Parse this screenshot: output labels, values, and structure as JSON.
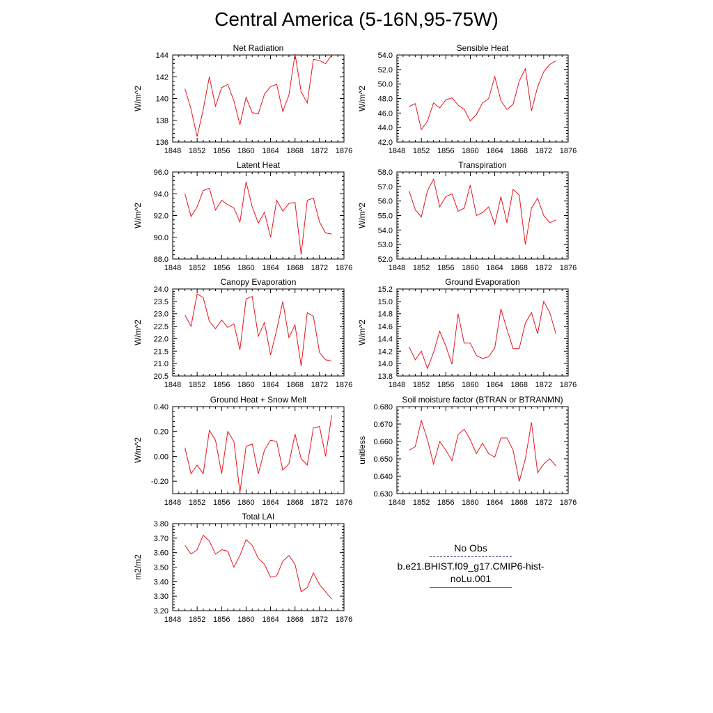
{
  "title": "Central America (5-16N,95-75W)",
  "colors": {
    "model": "#e8141c",
    "obs": "#5a5a9a",
    "axis": "#000000"
  },
  "legend": {
    "items": [
      {
        "label": "No Obs",
        "style": "dashed",
        "color": "#5a5a9a"
      },
      {
        "label": "b.e21.BHIST.f09_g17.CMIP6-hist-noLu.001",
        "style": "solid",
        "color": "#e8141c"
      }
    ]
  },
  "chart_data": [
    {
      "type": "line",
      "title": "Net Radiation",
      "ylabel": "W/m^2",
      "xlim": [
        1848,
        1876
      ],
      "ylim": [
        136,
        144
      ],
      "xticks": [
        1848,
        1852,
        1856,
        1860,
        1864,
        1868,
        1872,
        1876
      ],
      "yticks": [
        136,
        138,
        140,
        142,
        144
      ],
      "ydecimals": 0,
      "x": [
        1850,
        1851,
        1852,
        1853,
        1854,
        1855,
        1856,
        1857,
        1858,
        1859,
        1860,
        1861,
        1862,
        1863,
        1864,
        1865,
        1866,
        1867,
        1868,
        1869,
        1870,
        1871,
        1872,
        1873,
        1874
      ],
      "series": [
        {
          "name": "b.e21.BHIST.f09_g17.CMIP6-hist-noLu.001",
          "values": [
            140.9,
            139.0,
            136.5,
            139.0,
            142.0,
            139.3,
            141.0,
            141.3,
            139.8,
            137.6,
            140.1,
            138.7,
            138.6,
            140.4,
            141.1,
            141.3,
            138.8,
            140.3,
            144.1,
            140.6,
            139.6,
            143.6,
            143.5,
            143.2,
            144.0
          ]
        }
      ]
    },
    {
      "type": "line",
      "title": "Sensible Heat",
      "ylabel": "W/m^2",
      "xlim": [
        1848,
        1876
      ],
      "ylim": [
        42,
        54
      ],
      "xticks": [
        1848,
        1852,
        1856,
        1860,
        1864,
        1868,
        1872,
        1876
      ],
      "yticks": [
        42,
        44,
        46,
        48,
        50,
        52,
        54
      ],
      "ydecimals": 1,
      "x": [
        1850,
        1851,
        1852,
        1853,
        1854,
        1855,
        1856,
        1857,
        1858,
        1859,
        1860,
        1861,
        1862,
        1863,
        1864,
        1865,
        1866,
        1867,
        1868,
        1869,
        1870,
        1871,
        1872,
        1873,
        1874
      ],
      "series": [
        {
          "name": "b.e21.BHIST.f09_g17.CMIP6-hist-noLu.001",
          "values": [
            46.9,
            47.3,
            43.7,
            44.9,
            47.4,
            46.7,
            47.8,
            48.1,
            47.1,
            46.5,
            44.9,
            45.8,
            47.4,
            48.0,
            51.0,
            47.7,
            46.5,
            47.2,
            50.4,
            52.1,
            46.3,
            49.6,
            51.7,
            52.7,
            53.2
          ]
        }
      ]
    },
    {
      "type": "line",
      "title": "Latent Heat",
      "ylabel": "W/m^2",
      "xlim": [
        1848,
        1876
      ],
      "ylim": [
        88,
        96
      ],
      "xticks": [
        1848,
        1852,
        1856,
        1860,
        1864,
        1868,
        1872,
        1876
      ],
      "yticks": [
        88,
        90,
        92,
        94,
        96
      ],
      "ydecimals": 1,
      "x": [
        1850,
        1851,
        1852,
        1853,
        1854,
        1855,
        1856,
        1857,
        1858,
        1859,
        1860,
        1861,
        1862,
        1863,
        1864,
        1865,
        1866,
        1867,
        1868,
        1869,
        1870,
        1871,
        1872,
        1873,
        1874
      ],
      "series": [
        {
          "name": "b.e21.BHIST.f09_g17.CMIP6-hist-noLu.001",
          "values": [
            94.0,
            91.9,
            92.8,
            94.3,
            94.5,
            92.5,
            93.4,
            93.0,
            92.7,
            91.4,
            95.1,
            92.8,
            91.3,
            92.3,
            90.0,
            93.4,
            92.4,
            93.1,
            93.2,
            88.4,
            93.4,
            93.6,
            91.4,
            90.4,
            90.3
          ]
        }
      ]
    },
    {
      "type": "line",
      "title": "Transpiration",
      "ylabel": "W/m^2",
      "xlim": [
        1848,
        1876
      ],
      "ylim": [
        52,
        58
      ],
      "xticks": [
        1848,
        1852,
        1856,
        1860,
        1864,
        1868,
        1872,
        1876
      ],
      "yticks": [
        52,
        53,
        54,
        55,
        56,
        57,
        58
      ],
      "ydecimals": 1,
      "x": [
        1850,
        1851,
        1852,
        1853,
        1854,
        1855,
        1856,
        1857,
        1858,
        1859,
        1860,
        1861,
        1862,
        1863,
        1864,
        1865,
        1866,
        1867,
        1868,
        1869,
        1870,
        1871,
        1872,
        1873,
        1874
      ],
      "series": [
        {
          "name": "b.e21.BHIST.f09_g17.CMIP6-hist-noLu.001",
          "values": [
            56.7,
            55.4,
            54.9,
            56.7,
            57.5,
            55.6,
            56.3,
            56.5,
            55.3,
            55.5,
            57.1,
            55.0,
            55.2,
            55.6,
            54.4,
            56.3,
            54.5,
            56.8,
            56.4,
            53.0,
            55.5,
            56.2,
            55.0,
            54.5,
            54.7
          ]
        }
      ]
    },
    {
      "type": "line",
      "title": "Canopy Evaporation",
      "ylabel": "W/m^2",
      "xlim": [
        1848,
        1876
      ],
      "ylim": [
        20.5,
        24
      ],
      "xticks": [
        1848,
        1852,
        1856,
        1860,
        1864,
        1868,
        1872,
        1876
      ],
      "yticks": [
        20.5,
        21,
        21.5,
        22,
        22.5,
        23,
        23.5,
        24
      ],
      "ydecimals": 1,
      "x": [
        1850,
        1851,
        1852,
        1853,
        1854,
        1855,
        1856,
        1857,
        1858,
        1859,
        1860,
        1861,
        1862,
        1863,
        1864,
        1865,
        1866,
        1867,
        1868,
        1869,
        1870,
        1871,
        1872,
        1873,
        1874
      ],
      "series": [
        {
          "name": "b.e21.BHIST.f09_g17.CMIP6-hist-noLu.001",
          "values": [
            22.95,
            22.5,
            23.8,
            23.65,
            22.7,
            22.4,
            22.75,
            22.45,
            22.6,
            21.55,
            23.6,
            23.7,
            22.1,
            22.65,
            21.35,
            22.35,
            23.5,
            22.05,
            22.55,
            20.9,
            23.05,
            22.9,
            21.45,
            21.15,
            21.1
          ]
        }
      ]
    },
    {
      "type": "line",
      "title": "Ground Evaporation",
      "ylabel": "W/m^2",
      "xlim": [
        1848,
        1876
      ],
      "ylim": [
        13.8,
        15.2
      ],
      "xticks": [
        1848,
        1852,
        1856,
        1860,
        1864,
        1868,
        1872,
        1876
      ],
      "yticks": [
        13.8,
        14.0,
        14.2,
        14.4,
        14.6,
        14.8,
        15.0,
        15.2
      ],
      "ydecimals": 1,
      "x": [
        1850,
        1851,
        1852,
        1853,
        1854,
        1855,
        1856,
        1857,
        1858,
        1859,
        1860,
        1861,
        1862,
        1863,
        1864,
        1865,
        1866,
        1867,
        1868,
        1869,
        1870,
        1871,
        1872,
        1873,
        1874
      ],
      "series": [
        {
          "name": "b.e21.BHIST.f09_g17.CMIP6-hist-noLu.001",
          "values": [
            14.27,
            14.06,
            14.2,
            13.92,
            14.18,
            14.52,
            14.28,
            13.99,
            14.8,
            14.33,
            14.33,
            14.13,
            14.08,
            14.11,
            14.25,
            14.88,
            14.55,
            14.24,
            14.24,
            14.65,
            14.82,
            14.48,
            15.0,
            14.82,
            14.48
          ]
        }
      ]
    },
    {
      "type": "line",
      "title": "Ground Heat + Snow Melt",
      "ylabel": "W/m^2",
      "xlim": [
        1848,
        1876
      ],
      "ylim": [
        -0.3,
        0.4
      ],
      "xticks": [
        1848,
        1852,
        1856,
        1860,
        1864,
        1868,
        1872,
        1876
      ],
      "yticks": [
        -0.2,
        0.0,
        0.2,
        0.4
      ],
      "ydecimals": 2,
      "x": [
        1850,
        1851,
        1852,
        1853,
        1854,
        1855,
        1856,
        1857,
        1858,
        1859,
        1860,
        1861,
        1862,
        1863,
        1864,
        1865,
        1866,
        1867,
        1868,
        1869,
        1870,
        1871,
        1872,
        1873,
        1874
      ],
      "series": [
        {
          "name": "b.e21.BHIST.f09_g17.CMIP6-hist-noLu.001",
          "values": [
            0.07,
            -0.14,
            -0.07,
            -0.14,
            0.21,
            0.13,
            -0.14,
            0.2,
            0.12,
            -0.29,
            0.08,
            0.1,
            -0.14,
            0.05,
            0.13,
            0.12,
            -0.11,
            -0.06,
            0.18,
            -0.02,
            -0.07,
            0.23,
            0.24,
            0.0,
            0.33
          ]
        }
      ]
    },
    {
      "type": "line",
      "title": "Soil moisture factor (BTRAN or BTRANMN)",
      "ylabel": "unitless",
      "xlim": [
        1848,
        1876
      ],
      "ylim": [
        0.63,
        0.68
      ],
      "xticks": [
        1848,
        1852,
        1856,
        1860,
        1864,
        1868,
        1872,
        1876
      ],
      "yticks": [
        0.63,
        0.64,
        0.65,
        0.66,
        0.67,
        0.68
      ],
      "ydecimals": 3,
      "x": [
        1850,
        1851,
        1852,
        1853,
        1854,
        1855,
        1856,
        1857,
        1858,
        1859,
        1860,
        1861,
        1862,
        1863,
        1864,
        1865,
        1866,
        1867,
        1868,
        1869,
        1870,
        1871,
        1872,
        1873,
        1874
      ],
      "series": [
        {
          "name": "b.e21.BHIST.f09_g17.CMIP6-hist-noLu.001",
          "values": [
            0.655,
            0.657,
            0.672,
            0.661,
            0.647,
            0.66,
            0.655,
            0.649,
            0.664,
            0.667,
            0.661,
            0.653,
            0.659,
            0.653,
            0.651,
            0.662,
            0.662,
            0.655,
            0.637,
            0.65,
            0.671,
            0.642,
            0.647,
            0.65,
            0.646
          ]
        }
      ]
    },
    {
      "type": "line",
      "title": "Total LAI",
      "ylabel": "m2/m2",
      "xlim": [
        1848,
        1876
      ],
      "ylim": [
        3.2,
        3.8
      ],
      "xticks": [
        1848,
        1852,
        1856,
        1860,
        1864,
        1868,
        1872,
        1876
      ],
      "yticks": [
        3.2,
        3.3,
        3.4,
        3.5,
        3.6,
        3.7,
        3.8
      ],
      "ydecimals": 2,
      "x": [
        1850,
        1851,
        1852,
        1853,
        1854,
        1855,
        1856,
        1857,
        1858,
        1859,
        1860,
        1861,
        1862,
        1863,
        1864,
        1865,
        1866,
        1867,
        1868,
        1869,
        1870,
        1871,
        1872,
        1873,
        1874
      ],
      "series": [
        {
          "name": "b.e21.BHIST.f09_g17.CMIP6-hist-noLu.001",
          "values": [
            3.65,
            3.59,
            3.62,
            3.72,
            3.68,
            3.59,
            3.62,
            3.61,
            3.5,
            3.58,
            3.69,
            3.65,
            3.56,
            3.52,
            3.43,
            3.44,
            3.54,
            3.58,
            3.52,
            3.33,
            3.36,
            3.46,
            3.38,
            3.33,
            3.28
          ]
        }
      ]
    }
  ]
}
